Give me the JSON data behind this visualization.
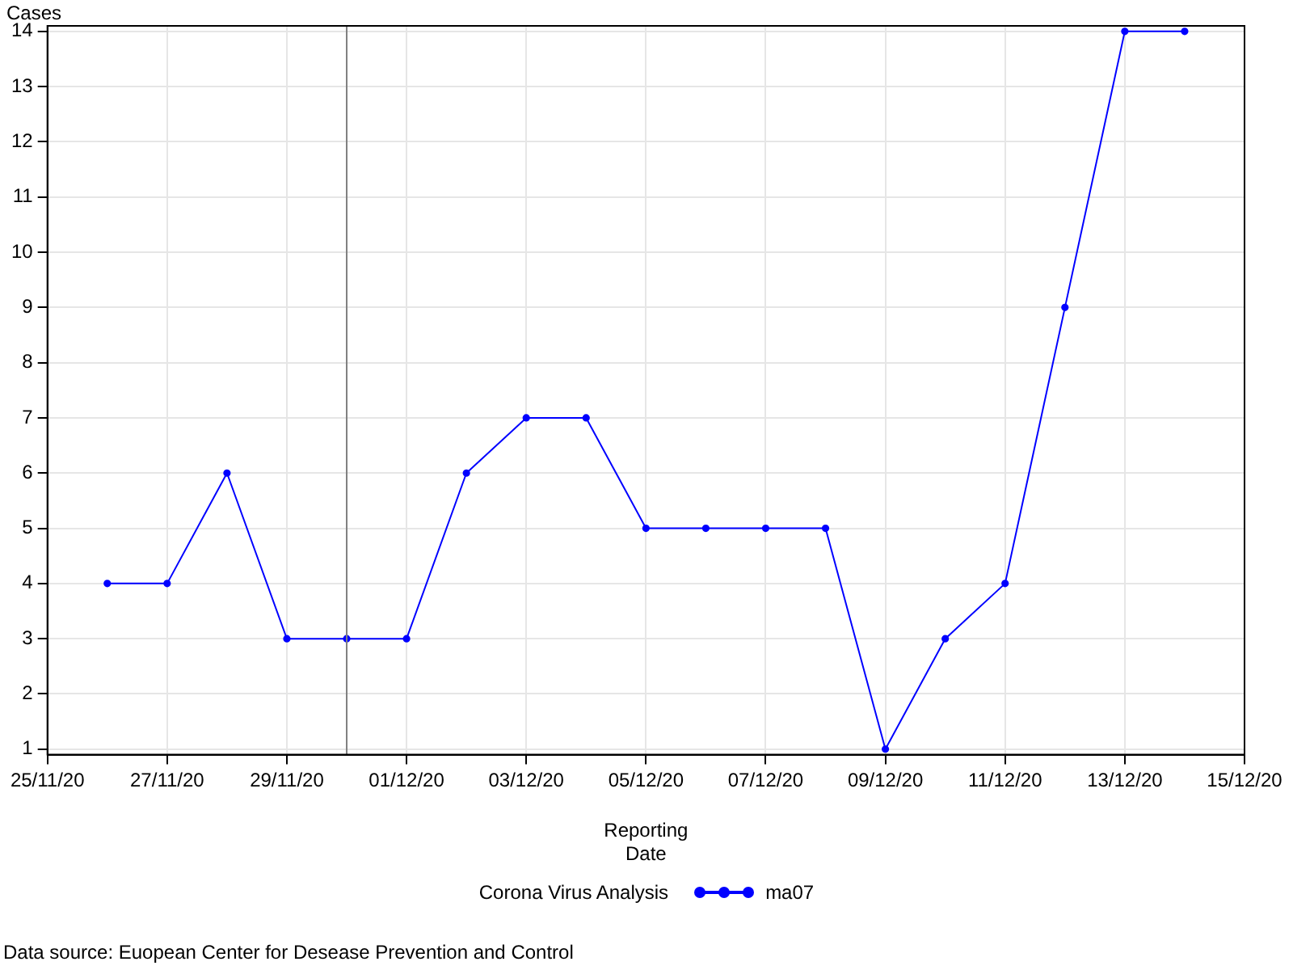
{
  "chart_data": {
    "type": "line",
    "xlabel": "Reporting Date",
    "ylabel": "Cases",
    "legend_title": "Corona Virus Analysis",
    "legend": "bottom",
    "grid": true,
    "marker": "circle",
    "line_style": "solid",
    "x": [
      "--11-26",
      "--11-27",
      "--11-28",
      "--11-29",
      "--11-30",
      "--12-01",
      "--12-02",
      "--12-03",
      "--12-04",
      "--12-05",
      "--12-06",
      "--12-07",
      "--12-08",
      "--12-09",
      "--12-10",
      "--12-11",
      "--12-12",
      "--12-13",
      "--12-14"
    ],
    "series": [
      {
        "name": "ma07",
        "color": "#0000ff",
        "values": [
          4,
          4,
          6,
          3,
          3,
          3,
          6,
          7,
          7,
          5,
          5,
          5,
          5,
          1,
          3,
          4,
          9,
          14,
          14
        ]
      }
    ],
    "xlim": [
      "--11-25",
      "--12-15"
    ],
    "xticks": [
      {
        "value": "--11-25",
        "label": "25/11/20"
      },
      {
        "value": "--11-27",
        "label": "27/11/20"
      },
      {
        "value": "--11-29",
        "label": "29/11/20"
      },
      {
        "value": "--12-01",
        "label": "01/12/20"
      },
      {
        "value": "--12-03",
        "label": "03/12/20"
      },
      {
        "value": "--12-05",
        "label": "05/12/20"
      },
      {
        "value": "--12-07",
        "label": "07/12/20"
      },
      {
        "value": "--12-09",
        "label": "09/12/20"
      },
      {
        "value": "--12-11",
        "label": "11/12/20"
      },
      {
        "value": "--12-13",
        "label": "13/12/20"
      },
      {
        "value": "--12-15",
        "label": "15/12/20"
      }
    ],
    "ylim": [
      0.9,
      14.1
    ],
    "yticks": [
      1,
      2,
      3,
      4,
      5,
      6,
      7,
      8,
      9,
      10,
      11,
      12,
      13,
      14
    ],
    "ref_lines": [
      {
        "axis": "x",
        "value": "--11-30",
        "color": "#808080"
      }
    ],
    "annotations": [
      "Data source: Euopean Center for Desease Prevention and Control"
    ]
  }
}
